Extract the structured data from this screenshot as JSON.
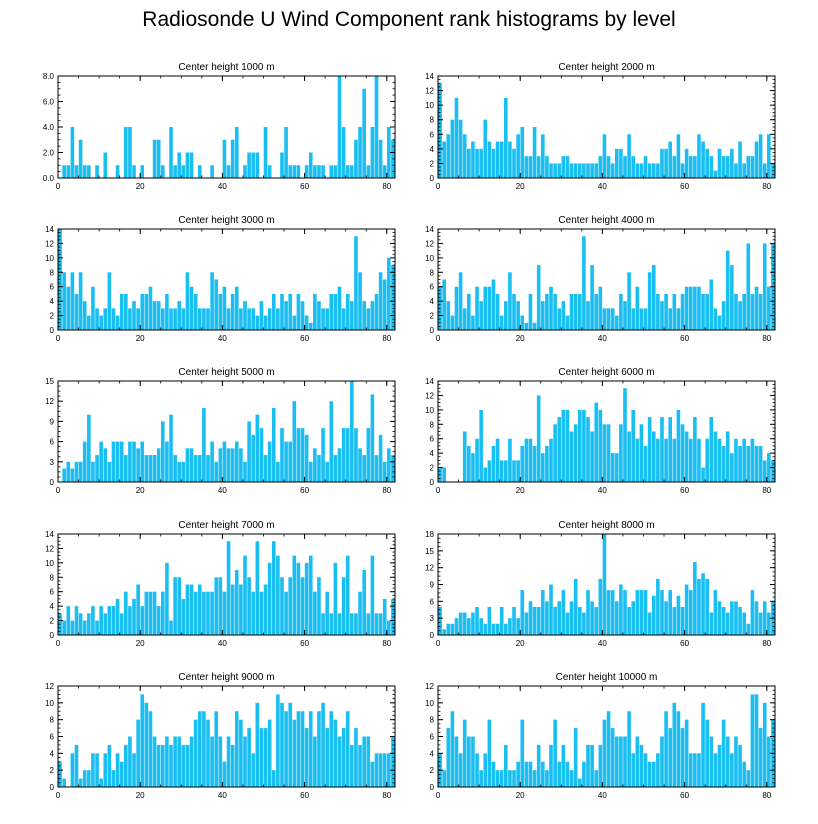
{
  "title": "Radiosonde U Wind Component rank histograms by level",
  "bar_color": "#19BFF2",
  "chart_data": [
    {
      "type": "bar",
      "title": "Center height 1000 m",
      "ylim": [
        0,
        8
      ],
      "yticks": [
        0,
        2,
        4,
        6,
        8
      ],
      "ytick_labels": [
        "0.0",
        "2.0",
        "4.0",
        "6.0",
        "8.0"
      ],
      "xlim": [
        0,
        82
      ],
      "xticks": [
        0,
        20,
        40,
        60,
        80
      ],
      "values": [
        0,
        1,
        1,
        4,
        1,
        3,
        1,
        1,
        0,
        1,
        0,
        2,
        0,
        0,
        1,
        0,
        4,
        4,
        1,
        0,
        1,
        0,
        0,
        3,
        3,
        1,
        0,
        4,
        1,
        2,
        1,
        2,
        2,
        0,
        1,
        0,
        0,
        1,
        0,
        0,
        3,
        1,
        3,
        4,
        0,
        1,
        2,
        2,
        2,
        0,
        4,
        1,
        0,
        0,
        2,
        4,
        1,
        1,
        1,
        0,
        1,
        2,
        1,
        1,
        1,
        0,
        1,
        1,
        8,
        4,
        1,
        1,
        3,
        4,
        7,
        1,
        4,
        8,
        3,
        1,
        4,
        3
      ]
    },
    {
      "type": "bar",
      "title": "Center height 2000 m",
      "ylim": [
        0,
        14
      ],
      "yticks": [
        0,
        2,
        4,
        6,
        8,
        10,
        12,
        14
      ],
      "xlim": [
        0,
        82
      ],
      "xticks": [
        0,
        20,
        40,
        60,
        80
      ],
      "values": [
        13,
        5,
        6,
        8,
        11,
        8,
        6,
        4,
        5,
        4,
        4,
        8,
        5,
        4,
        5,
        5,
        11,
        5,
        4,
        6,
        7,
        3,
        3,
        7,
        3,
        6,
        3,
        2,
        2,
        2,
        3,
        3,
        2,
        2,
        2,
        2,
        2,
        2,
        2,
        3,
        6,
        3,
        2,
        4,
        4,
        3,
        6,
        3,
        2,
        2,
        3,
        2,
        2,
        2,
        4,
        4,
        5,
        3,
        6,
        2,
        4,
        3,
        3,
        6,
        5,
        4,
        3,
        1,
        4,
        3,
        3,
        4,
        2,
        5,
        2,
        3,
        3,
        5,
        6,
        2,
        6,
        2
      ]
    },
    {
      "type": "bar",
      "title": "Center height 3000 m",
      "ylim": [
        0,
        14
      ],
      "yticks": [
        0,
        2,
        4,
        6,
        8,
        10,
        12,
        14
      ],
      "xlim": [
        0,
        82
      ],
      "xticks": [
        0,
        20,
        40,
        60,
        80
      ],
      "values": [
        14,
        8,
        6,
        8,
        5,
        8,
        4,
        2,
        6,
        3,
        2,
        3,
        8,
        3,
        2,
        5,
        5,
        3,
        4,
        3,
        5,
        5,
        6,
        4,
        4,
        3,
        5,
        3,
        3,
        4,
        3,
        8,
        6,
        5,
        3,
        3,
        3,
        8,
        7,
        5,
        6,
        3,
        5,
        6,
        3,
        4,
        3,
        3,
        2,
        4,
        2,
        3,
        5,
        3,
        5,
        4,
        5,
        2,
        5,
        4,
        2,
        1,
        5,
        4,
        3,
        3,
        5,
        5,
        6,
        3,
        5,
        4,
        13,
        8,
        4,
        3,
        4,
        5,
        8,
        7,
        10,
        9
      ]
    },
    {
      "type": "bar",
      "title": "Center height 4000 m",
      "ylim": [
        0,
        14
      ],
      "yticks": [
        0,
        2,
        4,
        6,
        8,
        10,
        12,
        14
      ],
      "xlim": [
        0,
        82
      ],
      "xticks": [
        0,
        20,
        40,
        60,
        80
      ],
      "values": [
        6,
        7,
        4,
        2,
        6,
        8,
        3,
        5,
        2,
        6,
        4,
        6,
        6,
        7,
        5,
        2,
        4,
        8,
        5,
        4,
        2,
        1,
        5,
        1,
        9,
        4,
        5,
        6,
        5,
        3,
        4,
        2,
        5,
        5,
        5,
        13,
        4,
        9,
        5,
        6,
        3,
        3,
        3,
        2,
        5,
        4,
        8,
        3,
        6,
        3,
        3,
        8,
        9,
        5,
        4,
        5,
        3,
        5,
        3,
        5,
        6,
        6,
        6,
        6,
        5,
        5,
        7,
        3,
        2,
        4,
        11,
        9,
        5,
        4,
        5,
        12,
        5,
        6,
        5,
        12,
        6,
        12
      ]
    },
    {
      "type": "bar",
      "title": "Center height 5000 m",
      "ylim": [
        0,
        15
      ],
      "yticks": [
        0,
        3,
        6,
        9,
        12,
        15
      ],
      "xlim": [
        0,
        82
      ],
      "xticks": [
        0,
        20,
        40,
        60,
        80
      ],
      "values": [
        0,
        2,
        3,
        2,
        3,
        3,
        6,
        10,
        3,
        4,
        6,
        5,
        3,
        6,
        6,
        6,
        4,
        6,
        6,
        5,
        6,
        4,
        4,
        4,
        5,
        9,
        6,
        10,
        4,
        3,
        3,
        5,
        5,
        4,
        4,
        11,
        4,
        6,
        3,
        5,
        6,
        5,
        5,
        6,
        5,
        3,
        9,
        7,
        10,
        8,
        4,
        6,
        11,
        3,
        8,
        6,
        6,
        12,
        8,
        8,
        7,
        3,
        5,
        4,
        8,
        3,
        12,
        4,
        5,
        8,
        8,
        15,
        8,
        5,
        4,
        8,
        13,
        4,
        7,
        3,
        5,
        4
      ]
    },
    {
      "type": "bar",
      "title": "Center height 6000 m",
      "ylim": [
        0,
        14
      ],
      "yticks": [
        0,
        2,
        4,
        6,
        8,
        10,
        12,
        14
      ],
      "xlim": [
        0,
        82
      ],
      "xticks": [
        0,
        20,
        40,
        60,
        80
      ],
      "values": [
        2,
        2,
        0,
        0,
        0,
        0,
        7,
        5,
        4,
        6,
        10,
        2,
        3,
        5,
        6,
        3,
        3,
        6,
        3,
        3,
        5,
        6,
        6,
        5,
        12,
        4,
        5,
        6,
        8,
        9,
        10,
        10,
        7,
        8,
        10,
        10,
        9,
        7,
        11,
        10,
        8,
        8,
        4,
        4,
        8,
        13,
        7,
        10,
        6,
        8,
        5,
        9,
        7,
        6,
        9,
        6,
        9,
        6,
        10,
        8,
        7,
        6,
        9,
        6,
        2,
        6,
        9,
        7,
        6,
        5,
        7,
        4,
        6,
        5,
        6,
        5,
        6,
        5,
        5,
        3,
        4,
        3
      ]
    },
    {
      "type": "bar",
      "title": "Center height 7000 m",
      "ylim": [
        0,
        14
      ],
      "yticks": [
        0,
        2,
        4,
        6,
        8,
        10,
        12,
        14
      ],
      "xlim": [
        0,
        82
      ],
      "xticks": [
        0,
        20,
        40,
        60,
        80
      ],
      "values": [
        3,
        2,
        4,
        2,
        4,
        3,
        2,
        3,
        4,
        2,
        4,
        3,
        4,
        4,
        5,
        3,
        6,
        4,
        5,
        7,
        4,
        6,
        6,
        6,
        4,
        6,
        10,
        2,
        8,
        8,
        5,
        7,
        7,
        6,
        7,
        6,
        6,
        6,
        8,
        8,
        6,
        13,
        7,
        9,
        7,
        11,
        8,
        6,
        13,
        6,
        7,
        10,
        13,
        11,
        8,
        6,
        8,
        11,
        10,
        8,
        10,
        11,
        6,
        8,
        3,
        6,
        3,
        10,
        3,
        8,
        11,
        3,
        3,
        6,
        9,
        3,
        11,
        3,
        3,
        5,
        2,
        5
      ]
    },
    {
      "type": "bar",
      "title": "Center height 8000 m",
      "ylim": [
        0,
        18
      ],
      "yticks": [
        0,
        3,
        6,
        9,
        12,
        15,
        18
      ],
      "xlim": [
        0,
        82
      ],
      "xticks": [
        0,
        20,
        40,
        60,
        80
      ],
      "values": [
        5,
        1,
        2,
        2,
        3,
        4,
        4,
        3,
        4,
        5,
        3,
        2,
        5,
        2,
        2,
        5,
        2,
        3,
        5,
        3,
        8,
        4,
        6,
        5,
        5,
        8,
        6,
        9,
        5,
        6,
        8,
        4,
        6,
        10,
        5,
        4,
        8,
        6,
        5,
        10,
        18,
        8,
        8,
        6,
        9,
        8,
        5,
        6,
        8,
        8,
        8,
        4,
        7,
        10,
        8,
        6,
        8,
        5,
        7,
        5,
        9,
        8,
        13,
        10,
        11,
        10,
        4,
        8,
        6,
        5,
        4,
        6,
        6,
        5,
        4,
        2,
        8,
        6,
        4,
        6,
        4,
        6
      ]
    },
    {
      "type": "bar",
      "title": "Center height 9000 m",
      "ylim": [
        0,
        12
      ],
      "yticks": [
        0,
        2,
        4,
        6,
        8,
        10,
        12
      ],
      "xlim": [
        0,
        82
      ],
      "xticks": [
        0,
        20,
        40,
        60,
        80
      ],
      "values": [
        3,
        1,
        0,
        4,
        5,
        1,
        2,
        2,
        4,
        4,
        1,
        4,
        5,
        2,
        4,
        3,
        5,
        6,
        4,
        8,
        11,
        10,
        9,
        6,
        5,
        5,
        6,
        5,
        6,
        6,
        5,
        5,
        6,
        8,
        9,
        9,
        8,
        6,
        9,
        6,
        3,
        6,
        5,
        9,
        8,
        6,
        7,
        4,
        10,
        7,
        7,
        8,
        2,
        11,
        10,
        9,
        10,
        8,
        9,
        9,
        7,
        9,
        6,
        9,
        10,
        7,
        9,
        8,
        6,
        7,
        9,
        5,
        7,
        5,
        6,
        6,
        3,
        4,
        4,
        4,
        4,
        6
      ]
    },
    {
      "type": "bar",
      "title": "Center height 10000 m",
      "ylim": [
        0,
        12
      ],
      "yticks": [
        0,
        2,
        4,
        6,
        8,
        10,
        12
      ],
      "xlim": [
        0,
        82
      ],
      "xticks": [
        0,
        20,
        40,
        60,
        80
      ],
      "values": [
        4,
        2,
        7,
        9,
        6,
        4,
        8,
        6,
        6,
        4,
        2,
        4,
        8,
        3,
        2,
        2,
        5,
        2,
        2,
        3,
        8,
        3,
        3,
        2,
        5,
        3,
        2,
        5,
        8,
        3,
        5,
        3,
        2,
        7,
        1,
        3,
        5,
        5,
        2,
        5,
        8,
        9,
        7,
        6,
        6,
        6,
        9,
        4,
        6,
        5,
        4,
        3,
        3,
        4,
        6,
        9,
        7,
        10,
        9,
        7,
        8,
        4,
        4,
        4,
        10,
        8,
        6,
        4,
        5,
        8,
        6,
        4,
        6,
        5,
        3,
        2,
        11,
        11,
        7,
        10,
        6,
        8
      ]
    }
  ]
}
